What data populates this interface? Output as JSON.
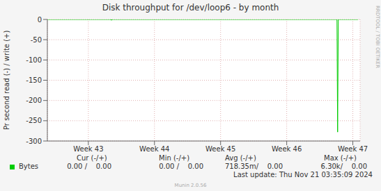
{
  "chart_data": {
    "type": "line",
    "title": "Disk throughput for /dev/loop6 - by month",
    "y_label": "Pr second read (-) / write (+)",
    "xlim": [
      42.38,
      47.11
    ],
    "xticks": [
      {
        "value": 43,
        "label": "Week 43"
      },
      {
        "value": 44,
        "label": "Week 44"
      },
      {
        "value": 45,
        "label": "Week 45"
      },
      {
        "value": 46,
        "label": "Week 46"
      },
      {
        "value": 47,
        "label": "Week 47"
      }
    ],
    "ylim": [
      -300,
      0
    ],
    "yticks": [
      0,
      -50,
      -100,
      -150,
      -200,
      -250,
      -300
    ],
    "grid": true,
    "x": [
      42.38,
      43.34,
      43.35,
      43.36,
      46.76,
      46.77,
      46.78,
      47.08
    ],
    "series": [
      {
        "name": "Bytes",
        "color": "#00cc00",
        "values": [
          0,
          0,
          -2,
          0,
          0,
          -278,
          0,
          0
        ]
      }
    ],
    "stats": {
      "headers": [
        "Cur (-/+)",
        "Min (-/+)",
        "Avg (-/+)",
        "Max (-/+)"
      ],
      "rows": [
        {
          "name": "Bytes",
          "values": [
            "0.00 /    0.00",
            "0.00 /    0.00",
            "718.35m/    0.00",
            "6.30k/    0.00"
          ]
        }
      ]
    },
    "footer": "Last update: Thu Nov 21 03:35:09 2024",
    "credit": "Munin 2.0.56",
    "watermark": "RRDTOOL / TOBI OETIKER"
  }
}
